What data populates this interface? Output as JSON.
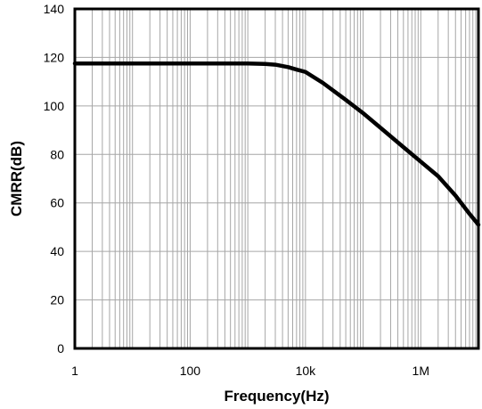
{
  "chart_data": {
    "type": "line",
    "title": "",
    "xlabel": "Frequency(Hz)",
    "ylabel": "CMRR(dB)",
    "x_scale": "log",
    "xlim": [
      1,
      10000000
    ],
    "ylim": [
      0,
      140
    ],
    "grid": true,
    "x_tick_values": [
      1,
      100,
      10000,
      1000000
    ],
    "x_tick_labels": [
      "1",
      "100",
      "10k",
      "1M"
    ],
    "y_tick_values": [
      0,
      20,
      40,
      60,
      80,
      100,
      120,
      140
    ],
    "y_tick_labels": [
      "0",
      "20",
      "40",
      "60",
      "80",
      "100",
      "120",
      "140"
    ],
    "series": [
      {
        "color": "#000000",
        "points": [
          [
            1,
            117.5
          ],
          [
            10,
            117.5
          ],
          [
            100,
            117.5
          ],
          [
            1000,
            117.5
          ],
          [
            2000,
            117.3
          ],
          [
            3000,
            117.0
          ],
          [
            5000,
            116.0
          ],
          [
            7000,
            115.0
          ],
          [
            10000,
            114.0
          ],
          [
            20000,
            109.5
          ],
          [
            50000,
            102.5
          ],
          [
            100000,
            97.0
          ],
          [
            200000,
            91.0
          ],
          [
            500000,
            83.0
          ],
          [
            1000000,
            77.0
          ],
          [
            2000000,
            71.0
          ],
          [
            4000000,
            63.0
          ],
          [
            7000000,
            55.5
          ],
          [
            10000000,
            51.0
          ]
        ]
      }
    ]
  }
}
